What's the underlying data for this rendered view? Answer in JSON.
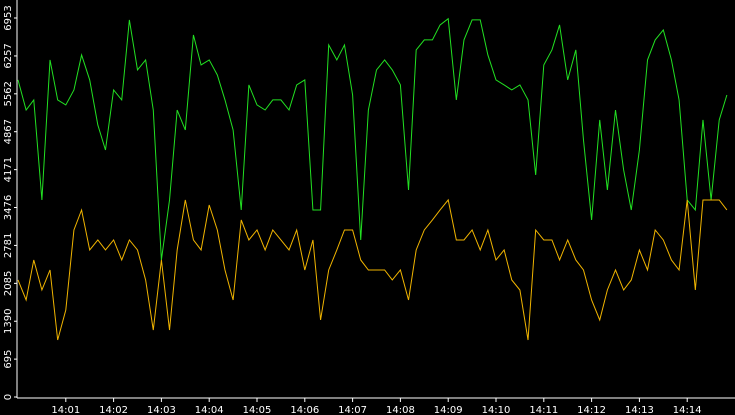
{
  "chart_data": {
    "type": "line",
    "x": [
      0,
      0.17,
      0.33,
      0.5,
      0.67,
      0.83,
      1,
      1.17,
      1.33,
      1.5,
      1.67,
      1.83,
      2,
      2.17,
      2.33,
      2.5,
      2.67,
      2.83,
      3,
      3.17,
      3.33,
      3.5,
      3.67,
      3.83,
      4,
      4.17,
      4.33,
      4.5,
      4.67,
      4.83,
      5,
      5.17,
      5.33,
      5.5,
      5.67,
      5.83,
      6,
      6.17,
      6.33,
      6.5,
      6.67,
      6.83,
      7,
      7.17,
      7.33,
      7.5,
      7.67,
      7.83,
      8,
      8.17,
      8.33,
      8.5,
      8.67,
      8.83,
      9,
      9.17,
      9.33,
      9.5,
      9.67,
      9.83,
      10,
      10.17,
      10.33,
      10.5,
      10.67,
      10.83,
      11,
      11.17,
      11.33,
      11.5,
      11.67,
      11.83,
      12,
      12.17,
      12.33,
      12.5,
      12.67,
      12.83,
      13,
      13.17,
      13.33,
      13.5,
      13.67,
      13.83,
      14,
      14.17,
      14.33,
      14.5,
      14.67,
      14.83
    ],
    "series": [
      {
        "color": "#22e022",
        "values": [
          5817,
          5265,
          5450,
          3615,
          6184,
          5450,
          5358,
          5633,
          6275,
          5817,
          4991,
          4532,
          5633,
          5450,
          6918,
          6000,
          6184,
          5265,
          2514,
          3615,
          5265,
          4899,
          6642,
          6091,
          6184,
          5908,
          5450,
          4899,
          3431,
          5725,
          5358,
          5265,
          5450,
          5450,
          5265,
          5725,
          5817,
          3431,
          3431,
          6459,
          6184,
          6459,
          5541,
          2881,
          5265,
          6000,
          6184,
          6000,
          5725,
          3798,
          6367,
          6551,
          6551,
          6826,
          6940,
          5450,
          6551,
          6918,
          6918,
          6275,
          5817,
          5725,
          5633,
          5725,
          5450,
          4073,
          6091,
          6367,
          6826,
          5817,
          6367,
          4716,
          3248,
          5083,
          3798,
          5265,
          4165,
          3431,
          4532,
          6184,
          6551,
          6734,
          6184,
          5450,
          3615,
          3431,
          5083,
          3615,
          5083,
          5541
        ]
      },
      {
        "color": "#f0b400",
        "values": [
          2147,
          1780,
          2514,
          1963,
          2330,
          1046,
          1596,
          3064,
          3431,
          2697,
          2881,
          2697,
          2881,
          2514,
          2881,
          2697,
          2147,
          1229,
          2514,
          1229,
          2697,
          3615,
          2881,
          2697,
          3522,
          3064,
          2330,
          1780,
          3248,
          2881,
          3064,
          2697,
          3064,
          2881,
          2697,
          3064,
          2330,
          2881,
          1413,
          2330,
          2697,
          3064,
          3064,
          2514,
          2330,
          2330,
          2330,
          2147,
          2330,
          1780,
          2697,
          3064,
          3248,
          3431,
          3615,
          2881,
          2881,
          3064,
          2697,
          3064,
          2514,
          2697,
          2147,
          1963,
          1046,
          3064,
          2881,
          2881,
          2514,
          2881,
          2514,
          2330,
          1780,
          1413,
          1963,
          2330,
          1963,
          2147,
          2697,
          2330,
          3064,
          2881,
          2514,
          2330,
          3615,
          1963,
          3615,
          3615,
          3615,
          3431
        ]
      }
    ],
    "xlim": [
      0,
      15
    ],
    "xticks": [
      {
        "value": 1,
        "label": "14:01"
      },
      {
        "value": 2,
        "label": "14:02"
      },
      {
        "value": 3,
        "label": "14:03"
      },
      {
        "value": 4,
        "label": "14:04"
      },
      {
        "value": 5,
        "label": "14:05"
      },
      {
        "value": 6,
        "label": "14:06"
      },
      {
        "value": 7,
        "label": "14:07"
      },
      {
        "value": 8,
        "label": "14:08"
      },
      {
        "value": 9,
        "label": "14:09"
      },
      {
        "value": 10,
        "label": "14:10"
      },
      {
        "value": 11,
        "label": "14:11"
      },
      {
        "value": 12,
        "label": "14:12"
      },
      {
        "value": 13,
        "label": "14:13"
      },
      {
        "value": 14,
        "label": "14:14"
      }
    ],
    "ylim": [
      0,
      6953
    ],
    "yticks": [
      0,
      695,
      1390,
      2085,
      2781,
      3476,
      4171,
      4867,
      5562,
      6257,
      6953
    ]
  }
}
